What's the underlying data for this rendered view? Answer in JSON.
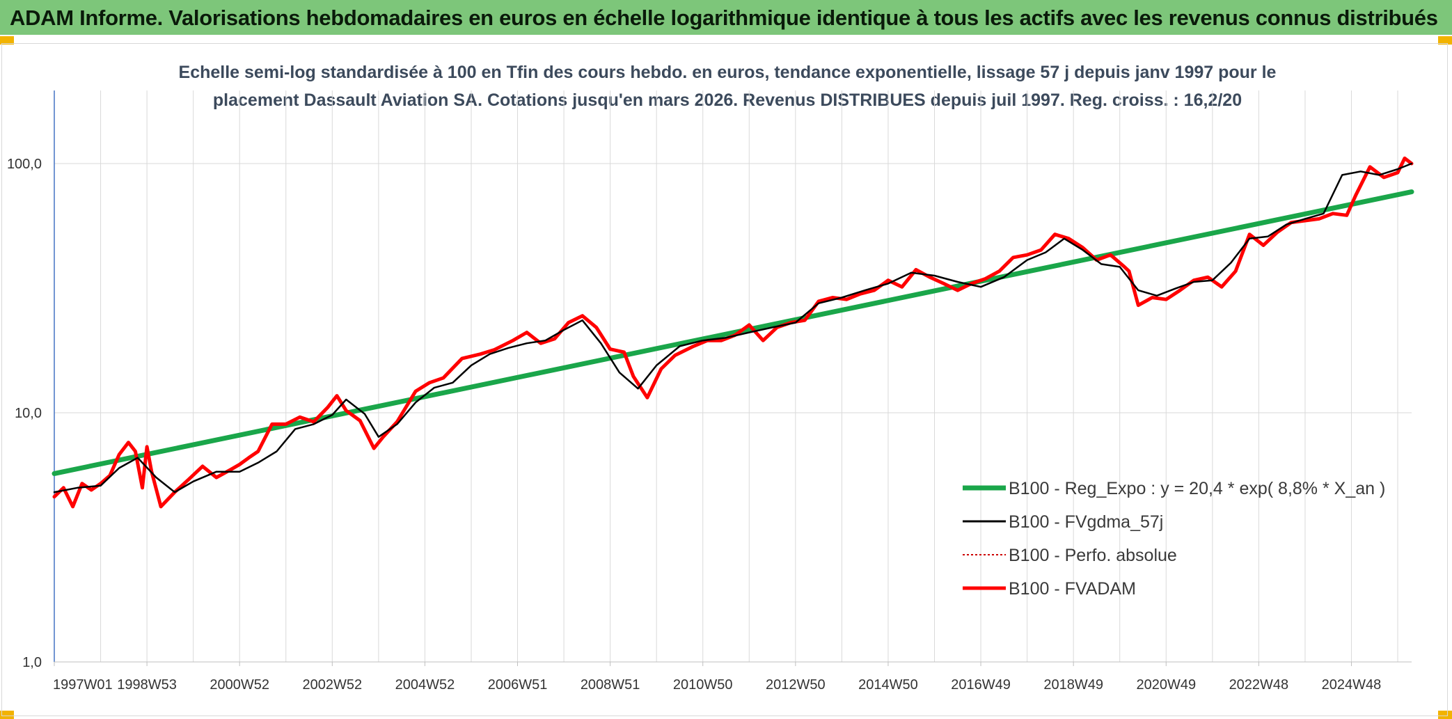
{
  "banner": {
    "title": "ADAM Informe. Valorisations hebdomadaires en euros en échelle logarithmique identique à tous les actifs avec les revenus connus distribués"
  },
  "colors": {
    "banner": "#7dc67a",
    "regression": "#1aa64a",
    "moving_average": "#000000",
    "perfo": "#cc0000",
    "fvadam": "#ff0000",
    "axis": "#4472c4",
    "grid": "#d9d9d9"
  },
  "chart_data": {
    "type": "line",
    "title": "Echelle semi-log standardisée à 100 en Tfin des cours hebdo. en euros, tendance exponentielle, lissage 57 j depuis janv 1997 pour le placement Dassault Aviation SA. Cotations jusqu'en mars 2026. Revenus DISTRIBUES depuis juil 1997. Reg. croiss. : 16,2/20",
    "yscale": "log",
    "ylim": [
      1,
      100
    ],
    "ytick_labels": [
      "100,0",
      "10,0",
      "1,0"
    ],
    "ytick_values": [
      100,
      10,
      1
    ],
    "xlim": [
      1997.0,
      2026.3
    ],
    "xtick_labels": [
      "1997W01",
      "1998W53",
      "2000W52",
      "2002W52",
      "2004W52",
      "2006W51",
      "2008W51",
      "2010W50",
      "2012W50",
      "2014W50",
      "2016W49",
      "2018W49",
      "2020W49",
      "2022W48",
      "2024W48"
    ],
    "xtick_values": [
      1997.0,
      1999.0,
      2001.0,
      2003.0,
      2005.0,
      2007.0,
      2009.0,
      2011.0,
      2013.0,
      2015.0,
      2017.0,
      2019.0,
      2021.0,
      2023.0,
      2025.0
    ],
    "grid": true,
    "legend_position": "lower-right",
    "series": [
      {
        "name": "B100 - Reg_Expo : y = 20,4 * exp( 8,8% *  X_an )",
        "style": "thick-green",
        "x": [
          1997.0,
          2026.3
        ],
        "y": [
          5.7,
          77
        ]
      },
      {
        "name": "B100 - FVgdma_57j",
        "style": "thin-black",
        "x": [
          1997.0,
          1997.5,
          1998.0,
          1998.4,
          1998.8,
          1999.2,
          1999.6,
          2000.0,
          2000.5,
          2001.0,
          2001.4,
          2001.8,
          2002.2,
          2002.6,
          2003.0,
          2003.3,
          2003.7,
          2004.0,
          2004.4,
          2004.8,
          2005.2,
          2005.6,
          2006.0,
          2006.4,
          2006.8,
          2007.2,
          2007.6,
          2008.0,
          2008.4,
          2008.8,
          2009.2,
          2009.6,
          2010.0,
          2010.5,
          2011.0,
          2011.5,
          2012.0,
          2012.5,
          2013.0,
          2013.5,
          2014.0,
          2014.5,
          2015.0,
          2015.5,
          2016.0,
          2016.5,
          2017.0,
          2017.5,
          2018.0,
          2018.4,
          2018.8,
          2019.2,
          2019.6,
          2020.0,
          2020.4,
          2020.8,
          2021.2,
          2021.6,
          2022.0,
          2022.4,
          2022.8,
          2023.2,
          2023.6,
          2024.0,
          2024.4,
          2024.8,
          2025.2,
          2025.6,
          2026.0,
          2026.3
        ],
        "y": [
          4.8,
          5.0,
          5.1,
          6.0,
          6.6,
          5.5,
          4.8,
          5.3,
          5.8,
          5.8,
          6.3,
          7.0,
          8.6,
          9.0,
          9.8,
          11.3,
          9.9,
          8.0,
          9.0,
          11.0,
          12.6,
          13.2,
          15.5,
          17.2,
          18.2,
          19.0,
          19.5,
          21.5,
          23.5,
          19.0,
          14.5,
          12.5,
          15.5,
          18.5,
          19.5,
          20.0,
          21.0,
          22.0,
          23.0,
          27.5,
          29.0,
          31.0,
          33.0,
          36.5,
          35.5,
          33.5,
          32.0,
          35.0,
          41.0,
          44.0,
          50.0,
          45.0,
          39.5,
          38.5,
          31.0,
          29.5,
          31.5,
          33.5,
          34.0,
          40.0,
          50.0,
          51.0,
          57.0,
          60.0,
          63.0,
          90.0,
          93.0,
          90.0,
          95.0,
          100.0
        ]
      },
      {
        "name": "B100 - Perfo. absolue",
        "style": "dotted-red",
        "x": [],
        "y": []
      },
      {
        "name": "B100 - FVADAM",
        "style": "thick-red",
        "x": [
          1997.0,
          1997.2,
          1997.4,
          1997.6,
          1997.8,
          1998.0,
          1998.2,
          1998.4,
          1998.6,
          1998.75,
          1998.9,
          1999.0,
          1999.1,
          1999.3,
          1999.6,
          1999.9,
          2000.2,
          2000.5,
          2000.8,
          2001.0,
          2001.2,
          2001.4,
          2001.7,
          2002.0,
          2002.3,
          2002.6,
          2002.9,
          2003.1,
          2003.3,
          2003.6,
          2003.9,
          2004.1,
          2004.4,
          2004.8,
          2005.1,
          2005.4,
          2005.8,
          2006.2,
          2006.5,
          2006.9,
          2007.2,
          2007.5,
          2007.8,
          2008.1,
          2008.4,
          2008.7,
          2009.0,
          2009.3,
          2009.5,
          2009.8,
          2010.1,
          2010.4,
          2010.8,
          2011.1,
          2011.4,
          2011.7,
          2012.0,
          2012.3,
          2012.6,
          2012.9,
          2013.2,
          2013.5,
          2013.8,
          2014.1,
          2014.4,
          2014.7,
          2015.0,
          2015.3,
          2015.6,
          2015.9,
          2016.2,
          2016.5,
          2016.8,
          2017.1,
          2017.4,
          2017.7,
          2018.0,
          2018.3,
          2018.6,
          2018.9,
          2019.2,
          2019.5,
          2019.8,
          2020.1,
          2020.2,
          2020.4,
          2020.7,
          2021.0,
          2021.3,
          2021.6,
          2021.9,
          2022.2,
          2022.5,
          2022.8,
          2023.1,
          2023.4,
          2023.7,
          2024.0,
          2024.3,
          2024.6,
          2024.9,
          2025.1,
          2025.4,
          2025.7,
          2026.0,
          2026.15,
          2026.3
        ],
        "y": [
          4.6,
          5.0,
          4.2,
          5.2,
          4.9,
          5.2,
          5.6,
          6.8,
          7.6,
          7.0,
          5.0,
          7.3,
          5.8,
          4.2,
          4.8,
          5.4,
          6.1,
          5.5,
          5.9,
          6.2,
          6.6,
          7.0,
          9.0,
          9.0,
          9.6,
          9.2,
          10.5,
          11.7,
          10.2,
          9.3,
          7.2,
          8.0,
          9.2,
          12.2,
          13.2,
          13.8,
          16.5,
          17.2,
          17.9,
          19.5,
          21.0,
          19.0,
          19.8,
          23.0,
          24.5,
          22.0,
          18.0,
          17.5,
          14.0,
          11.5,
          15.0,
          17.0,
          18.5,
          19.5,
          19.5,
          20.5,
          22.5,
          19.5,
          22.0,
          23.0,
          23.5,
          28.0,
          29.0,
          28.5,
          30.0,
          31.0,
          34.0,
          32.0,
          37.5,
          35.0,
          33.0,
          31.0,
          33.0,
          34.5,
          37.0,
          42.0,
          43.0,
          45.0,
          52.0,
          50.0,
          46.0,
          41.0,
          43.0,
          38.5,
          37.0,
          27.0,
          29.0,
          28.5,
          31.0,
          34.0,
          35.0,
          32.0,
          37.0,
          52.0,
          47.0,
          53.0,
          58.0,
          59.0,
          60.0,
          63.0,
          62.0,
          75.0,
          97.0,
          88.0,
          92.0,
          105.0,
          100.0
        ]
      }
    ]
  }
}
